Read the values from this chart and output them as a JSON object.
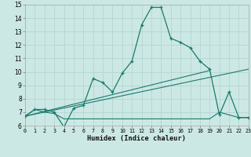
{
  "bg_color": "#cce8e4",
  "grid_color": "#b5d5d0",
  "line_color": "#1a7a6e",
  "xlim": [
    0,
    23
  ],
  "ylim": [
    6,
    15
  ],
  "xticks": [
    0,
    1,
    2,
    3,
    4,
    5,
    6,
    7,
    8,
    9,
    10,
    11,
    12,
    13,
    14,
    15,
    16,
    17,
    18,
    19,
    20,
    21,
    22,
    23
  ],
  "yticks": [
    6,
    7,
    8,
    9,
    10,
    11,
    12,
    13,
    14,
    15
  ],
  "curve_x": [
    0,
    1,
    2,
    3,
    4,
    5,
    6,
    7,
    8,
    9,
    10,
    11,
    12,
    13,
    14,
    15,
    16,
    17,
    18,
    19,
    20,
    21,
    22,
    23
  ],
  "curve_y": [
    6.7,
    7.2,
    7.2,
    7.0,
    5.9,
    7.3,
    7.5,
    9.5,
    9.2,
    8.5,
    9.9,
    10.8,
    13.5,
    14.8,
    14.8,
    12.5,
    12.2,
    11.8,
    10.8,
    10.2,
    6.8,
    8.5,
    6.6,
    6.6
  ],
  "flat_x": [
    0,
    1,
    2,
    3,
    4,
    5,
    14,
    19,
    20,
    22,
    23
  ],
  "flat_y": [
    6.7,
    7.2,
    7.0,
    6.9,
    6.5,
    6.5,
    6.5,
    6.5,
    7.0,
    6.6,
    6.6
  ],
  "trend1_x": [
    0,
    23
  ],
  "trend1_y": [
    6.7,
    10.2
  ],
  "trend2_x": [
    0,
    23
  ],
  "trend2_y": [
    6.7,
    10.2
  ],
  "xlabel": "Humidex (Indice chaleur)"
}
